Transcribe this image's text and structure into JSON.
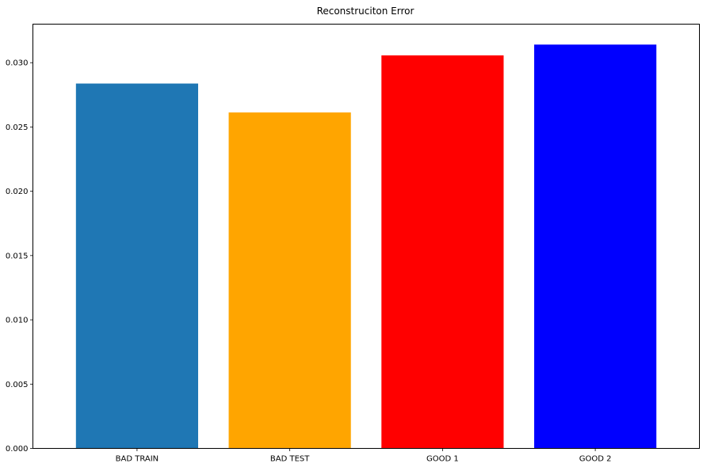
{
  "chart_data": {
    "type": "bar",
    "title": "Reconstruciton Error",
    "xlabel": "",
    "ylabel": "",
    "categories": [
      "BAD TRAIN",
      "BAD TEST",
      "GOOD 1",
      "GOOD 2"
    ],
    "values": [
      0.02838,
      0.02613,
      0.03057,
      0.03141
    ],
    "colors": [
      "#1f77b4",
      "#ffa500",
      "#ff0000",
      "#0000ff"
    ],
    "ylim": [
      0,
      0.033
    ],
    "yticks": [
      0.0,
      0.005,
      0.01,
      0.015,
      0.02,
      0.025,
      0.03
    ],
    "ytick_labels": [
      "0.000",
      "0.005",
      "0.010",
      "0.015",
      "0.020",
      "0.025",
      "0.030"
    ],
    "grid": false,
    "legend": "none"
  }
}
